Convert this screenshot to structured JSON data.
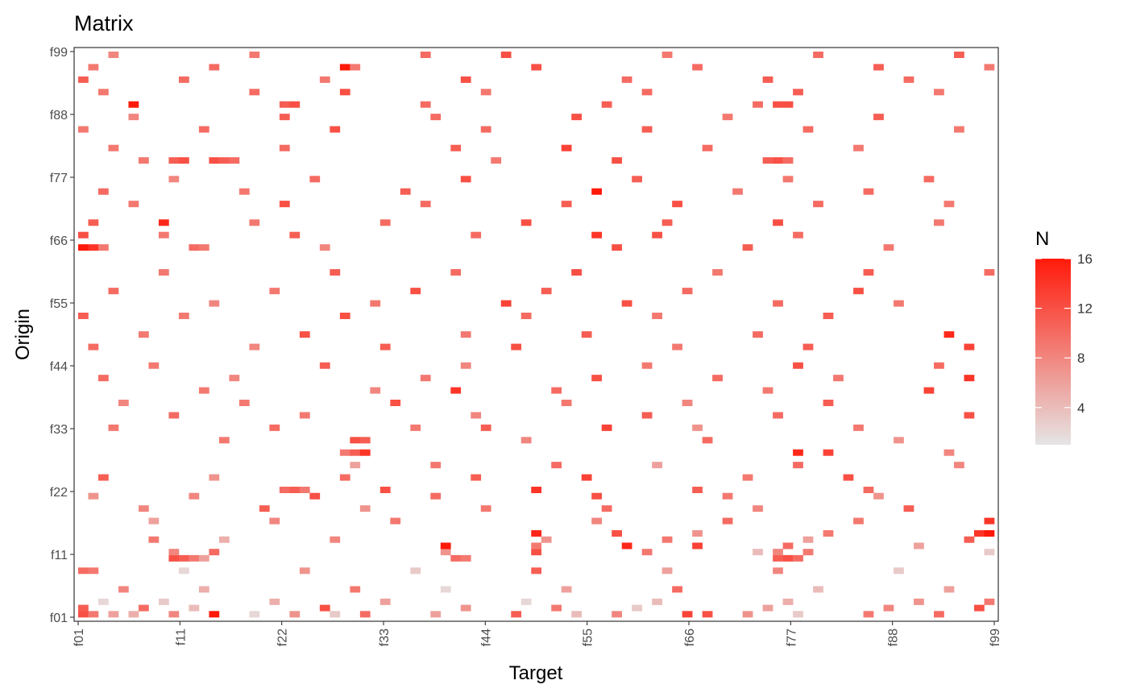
{
  "chart_data": {
    "type": "heatmap",
    "title": "Matrix",
    "xlabel": "Target",
    "ylabel": "Origin",
    "x_ticks": [
      "f01",
      "f11",
      "f22",
      "f33",
      "f44",
      "f55",
      "f66",
      "f77",
      "f88",
      "f99"
    ],
    "y_ticks": [
      "f01",
      "f11",
      "f22",
      "f33",
      "f44",
      "f55",
      "f66",
      "f77",
      "f88",
      "f99"
    ],
    "categories_count": 91,
    "value_range": [
      1,
      16
    ],
    "legend": {
      "title": "N",
      "ticks": [
        4,
        8,
        12,
        16
      ],
      "placement": "right",
      "color_low": "#e5e5e5",
      "color_high": "#ff1a0a"
    },
    "grid": false,
    "cells": [
      [
        0,
        0,
        12
      ],
      [
        1,
        0,
        9
      ],
      [
        3,
        0,
        6
      ],
      [
        5,
        0,
        5
      ],
      [
        9,
        0,
        8
      ],
      [
        13,
        0,
        16
      ],
      [
        17,
        0,
        2
      ],
      [
        21,
        0,
        7
      ],
      [
        25,
        0,
        3
      ],
      [
        28,
        0,
        10
      ],
      [
        35,
        0,
        6
      ],
      [
        43,
        0,
        11
      ],
      [
        49,
        0,
        4
      ],
      [
        53,
        0,
        8
      ],
      [
        60,
        0,
        13
      ],
      [
        62,
        0,
        12
      ],
      [
        66,
        0,
        7
      ],
      [
        71,
        0,
        3
      ],
      [
        78,
        0,
        9
      ],
      [
        85,
        0,
        10
      ],
      [
        0,
        1,
        11
      ],
      [
        6,
        1,
        10
      ],
      [
        11,
        1,
        4
      ],
      [
        24,
        1,
        12
      ],
      [
        38,
        1,
        7
      ],
      [
        47,
        1,
        9
      ],
      [
        55,
        1,
        3
      ],
      [
        68,
        1,
        6
      ],
      [
        80,
        1,
        8
      ],
      [
        89,
        1,
        12
      ],
      [
        2,
        2,
        2
      ],
      [
        8,
        2,
        3
      ],
      [
        19,
        2,
        5
      ],
      [
        30,
        2,
        6
      ],
      [
        44,
        2,
        2
      ],
      [
        57,
        2,
        4
      ],
      [
        70,
        2,
        5
      ],
      [
        83,
        2,
        7
      ],
      [
        90,
        2,
        9
      ],
      [
        4,
        4,
        8
      ],
      [
        12,
        4,
        5
      ],
      [
        27,
        4,
        9
      ],
      [
        36,
        4,
        2
      ],
      [
        48,
        4,
        6
      ],
      [
        59,
        4,
        10
      ],
      [
        73,
        4,
        4
      ],
      [
        86,
        4,
        6
      ],
      [
        0,
        7,
        10
      ],
      [
        1,
        7,
        9
      ],
      [
        10,
        7,
        2
      ],
      [
        22,
        7,
        7
      ],
      [
        33,
        7,
        3
      ],
      [
        45,
        7,
        11
      ],
      [
        58,
        7,
        6
      ],
      [
        69,
        7,
        8
      ],
      [
        81,
        7,
        3
      ],
      [
        9,
        9,
        12
      ],
      [
        10,
        9,
        11
      ],
      [
        11,
        9,
        9
      ],
      [
        12,
        9,
        6
      ],
      [
        37,
        9,
        10
      ],
      [
        38,
        9,
        9
      ],
      [
        69,
        9,
        11
      ],
      [
        70,
        9,
        12
      ],
      [
        71,
        9,
        10
      ],
      [
        9,
        10,
        8
      ],
      [
        13,
        10,
        10
      ],
      [
        36,
        10,
        7
      ],
      [
        45,
        10,
        12
      ],
      [
        56,
        10,
        9
      ],
      [
        67,
        10,
        4
      ],
      [
        69,
        10,
        8
      ],
      [
        72,
        10,
        9
      ],
      [
        90,
        10,
        3
      ],
      [
        36,
        11,
        16
      ],
      [
        45,
        11,
        9
      ],
      [
        54,
        11,
        15
      ],
      [
        61,
        11,
        13
      ],
      [
        70,
        11,
        10
      ],
      [
        83,
        11,
        6
      ],
      [
        7,
        12,
        9
      ],
      [
        14,
        12,
        5
      ],
      [
        25,
        12,
        8
      ],
      [
        46,
        12,
        7
      ],
      [
        58,
        12,
        9
      ],
      [
        72,
        12,
        6
      ],
      [
        88,
        12,
        11
      ],
      [
        45,
        13,
        15
      ],
      [
        53,
        13,
        12
      ],
      [
        61,
        13,
        7
      ],
      [
        74,
        13,
        9
      ],
      [
        89,
        13,
        14
      ],
      [
        90,
        13,
        16
      ],
      [
        90,
        15,
        14
      ],
      [
        7,
        15,
        6
      ],
      [
        19,
        15,
        8
      ],
      [
        31,
        15,
        9
      ],
      [
        51,
        15,
        8
      ],
      [
        64,
        15,
        10
      ],
      [
        77,
        15,
        9
      ],
      [
        6,
        17,
        8
      ],
      [
        18,
        17,
        11
      ],
      [
        28,
        17,
        7
      ],
      [
        40,
        17,
        9
      ],
      [
        52,
        17,
        10
      ],
      [
        67,
        17,
        8
      ],
      [
        82,
        17,
        11
      ],
      [
        1,
        19,
        7
      ],
      [
        11,
        19,
        8
      ],
      [
        23,
        19,
        12
      ],
      [
        35,
        19,
        10
      ],
      [
        51,
        19,
        12
      ],
      [
        64,
        19,
        9
      ],
      [
        79,
        19,
        7
      ],
      [
        20,
        20,
        10
      ],
      [
        21,
        20,
        11
      ],
      [
        22,
        20,
        9
      ],
      [
        30,
        20,
        12
      ],
      [
        45,
        20,
        14
      ],
      [
        61,
        20,
        11
      ],
      [
        78,
        20,
        10
      ],
      [
        2,
        22,
        11
      ],
      [
        13,
        22,
        7
      ],
      [
        26,
        22,
        10
      ],
      [
        39,
        22,
        11
      ],
      [
        50,
        22,
        13
      ],
      [
        66,
        22,
        9
      ],
      [
        76,
        22,
        12
      ],
      [
        27,
        24,
        6
      ],
      [
        35,
        24,
        9
      ],
      [
        47,
        24,
        10
      ],
      [
        57,
        24,
        6
      ],
      [
        71,
        24,
        10
      ],
      [
        87,
        24,
        8
      ],
      [
        26,
        26,
        9
      ],
      [
        27,
        26,
        11
      ],
      [
        28,
        26,
        14
      ],
      [
        71,
        26,
        15
      ],
      [
        74,
        26,
        13
      ],
      [
        86,
        26,
        8
      ],
      [
        14,
        28,
        9
      ],
      [
        27,
        28,
        12
      ],
      [
        28,
        28,
        11
      ],
      [
        44,
        28,
        8
      ],
      [
        62,
        28,
        10
      ],
      [
        81,
        28,
        7
      ],
      [
        3,
        30,
        9
      ],
      [
        19,
        30,
        10
      ],
      [
        33,
        30,
        9
      ],
      [
        40,
        30,
        11
      ],
      [
        52,
        30,
        13
      ],
      [
        61,
        30,
        7
      ],
      [
        77,
        30,
        9
      ],
      [
        9,
        32,
        10
      ],
      [
        22,
        32,
        9
      ],
      [
        39,
        32,
        8
      ],
      [
        56,
        32,
        11
      ],
      [
        69,
        32,
        10
      ],
      [
        88,
        32,
        12
      ],
      [
        4,
        34,
        8
      ],
      [
        16,
        34,
        9
      ],
      [
        31,
        34,
        12
      ],
      [
        48,
        34,
        9
      ],
      [
        60,
        34,
        8
      ],
      [
        74,
        34,
        11
      ],
      [
        12,
        36,
        9
      ],
      [
        29,
        36,
        8
      ],
      [
        37,
        36,
        14
      ],
      [
        47,
        36,
        10
      ],
      [
        68,
        36,
        9
      ],
      [
        84,
        36,
        13
      ],
      [
        2,
        38,
        10
      ],
      [
        15,
        38,
        8
      ],
      [
        34,
        38,
        9
      ],
      [
        51,
        38,
        12
      ],
      [
        63,
        38,
        10
      ],
      [
        75,
        38,
        9
      ],
      [
        88,
        38,
        14
      ],
      [
        7,
        40,
        9
      ],
      [
        24,
        40,
        11
      ],
      [
        38,
        40,
        8
      ],
      [
        56,
        40,
        9
      ],
      [
        71,
        40,
        12
      ],
      [
        85,
        40,
        10
      ],
      [
        1,
        43,
        10
      ],
      [
        17,
        43,
        8
      ],
      [
        30,
        43,
        11
      ],
      [
        43,
        43,
        12
      ],
      [
        59,
        43,
        9
      ],
      [
        72,
        43,
        11
      ],
      [
        88,
        43,
        13
      ],
      [
        6,
        45,
        9
      ],
      [
        22,
        45,
        12
      ],
      [
        38,
        45,
        9
      ],
      [
        50,
        45,
        11
      ],
      [
        67,
        45,
        10
      ],
      [
        86,
        45,
        15
      ],
      [
        0,
        48,
        11
      ],
      [
        10,
        48,
        9
      ],
      [
        26,
        48,
        12
      ],
      [
        44,
        48,
        10
      ],
      [
        57,
        48,
        9
      ],
      [
        74,
        48,
        11
      ],
      [
        13,
        50,
        8
      ],
      [
        29,
        50,
        9
      ],
      [
        42,
        50,
        13
      ],
      [
        54,
        50,
        12
      ],
      [
        69,
        50,
        10
      ],
      [
        81,
        50,
        9
      ],
      [
        3,
        52,
        10
      ],
      [
        19,
        52,
        9
      ],
      [
        33,
        52,
        12
      ],
      [
        46,
        52,
        11
      ],
      [
        60,
        52,
        10
      ],
      [
        77,
        52,
        12
      ],
      [
        8,
        55,
        9
      ],
      [
        25,
        55,
        11
      ],
      [
        37,
        55,
        10
      ],
      [
        49,
        55,
        12
      ],
      [
        63,
        55,
        9
      ],
      [
        78,
        55,
        11
      ],
      [
        90,
        55,
        10
      ],
      [
        0,
        59,
        16
      ],
      [
        1,
        59,
        14
      ],
      [
        2,
        59,
        9
      ],
      [
        11,
        59,
        10
      ],
      [
        12,
        59,
        9
      ],
      [
        24,
        59,
        8
      ],
      [
        53,
        59,
        12
      ],
      [
        66,
        59,
        11
      ],
      [
        80,
        59,
        9
      ],
      [
        0,
        61,
        12
      ],
      [
        8,
        61,
        9
      ],
      [
        21,
        61,
        11
      ],
      [
        39,
        61,
        10
      ],
      [
        51,
        61,
        14
      ],
      [
        57,
        61,
        12
      ],
      [
        71,
        61,
        10
      ],
      [
        1,
        63,
        11
      ],
      [
        8,
        63,
        15
      ],
      [
        17,
        63,
        9
      ],
      [
        30,
        63,
        10
      ],
      [
        44,
        63,
        12
      ],
      [
        58,
        63,
        11
      ],
      [
        69,
        63,
        12
      ],
      [
        85,
        63,
        9
      ],
      [
        5,
        66,
        9
      ],
      [
        20,
        66,
        12
      ],
      [
        34,
        66,
        10
      ],
      [
        48,
        66,
        11
      ],
      [
        59,
        66,
        12
      ],
      [
        73,
        66,
        10
      ],
      [
        86,
        66,
        9
      ],
      [
        2,
        68,
        10
      ],
      [
        16,
        68,
        9
      ],
      [
        32,
        68,
        11
      ],
      [
        51,
        68,
        16
      ],
      [
        65,
        68,
        9
      ],
      [
        78,
        68,
        10
      ],
      [
        9,
        70,
        8
      ],
      [
        23,
        70,
        10
      ],
      [
        38,
        70,
        12
      ],
      [
        55,
        70,
        11
      ],
      [
        70,
        70,
        9
      ],
      [
        84,
        70,
        10
      ],
      [
        6,
        73,
        9
      ],
      [
        9,
        73,
        11
      ],
      [
        10,
        73,
        12
      ],
      [
        13,
        73,
        12
      ],
      [
        14,
        73,
        11
      ],
      [
        15,
        73,
        10
      ],
      [
        41,
        73,
        9
      ],
      [
        53,
        73,
        12
      ],
      [
        68,
        73,
        11
      ],
      [
        69,
        73,
        12
      ],
      [
        70,
        73,
        10
      ],
      [
        3,
        75,
        9
      ],
      [
        20,
        75,
        10
      ],
      [
        37,
        75,
        11
      ],
      [
        48,
        75,
        13
      ],
      [
        62,
        75,
        10
      ],
      [
        77,
        75,
        9
      ],
      [
        0,
        78,
        9
      ],
      [
        12,
        78,
        10
      ],
      [
        25,
        78,
        12
      ],
      [
        40,
        78,
        10
      ],
      [
        56,
        78,
        11
      ],
      [
        72,
        78,
        10
      ],
      [
        87,
        78,
        9
      ],
      [
        5,
        80,
        8
      ],
      [
        20,
        80,
        11
      ],
      [
        35,
        80,
        10
      ],
      [
        49,
        80,
        12
      ],
      [
        64,
        80,
        9
      ],
      [
        79,
        80,
        11
      ],
      [
        5,
        82,
        16
      ],
      [
        20,
        82,
        11
      ],
      [
        21,
        82,
        12
      ],
      [
        34,
        82,
        10
      ],
      [
        52,
        82,
        11
      ],
      [
        67,
        82,
        10
      ],
      [
        69,
        82,
        12
      ],
      [
        70,
        82,
        12
      ],
      [
        2,
        84,
        9
      ],
      [
        17,
        84,
        10
      ],
      [
        26,
        84,
        12
      ],
      [
        40,
        84,
        9
      ],
      [
        56,
        84,
        10
      ],
      [
        71,
        84,
        11
      ],
      [
        85,
        84,
        9
      ],
      [
        0,
        86,
        11
      ],
      [
        10,
        86,
        10
      ],
      [
        24,
        86,
        9
      ],
      [
        38,
        86,
        12
      ],
      [
        54,
        86,
        10
      ],
      [
        68,
        86,
        11
      ],
      [
        82,
        86,
        10
      ],
      [
        1,
        88,
        9
      ],
      [
        13,
        88,
        10
      ],
      [
        26,
        88,
        16
      ],
      [
        27,
        88,
        9
      ],
      [
        45,
        88,
        12
      ],
      [
        61,
        88,
        10
      ],
      [
        79,
        88,
        11
      ],
      [
        90,
        88,
        9
      ],
      [
        3,
        90,
        8
      ],
      [
        17,
        90,
        9
      ],
      [
        34,
        90,
        10
      ],
      [
        42,
        90,
        12
      ],
      [
        58,
        90,
        9
      ],
      [
        73,
        90,
        10
      ],
      [
        87,
        90,
        11
      ]
    ]
  }
}
